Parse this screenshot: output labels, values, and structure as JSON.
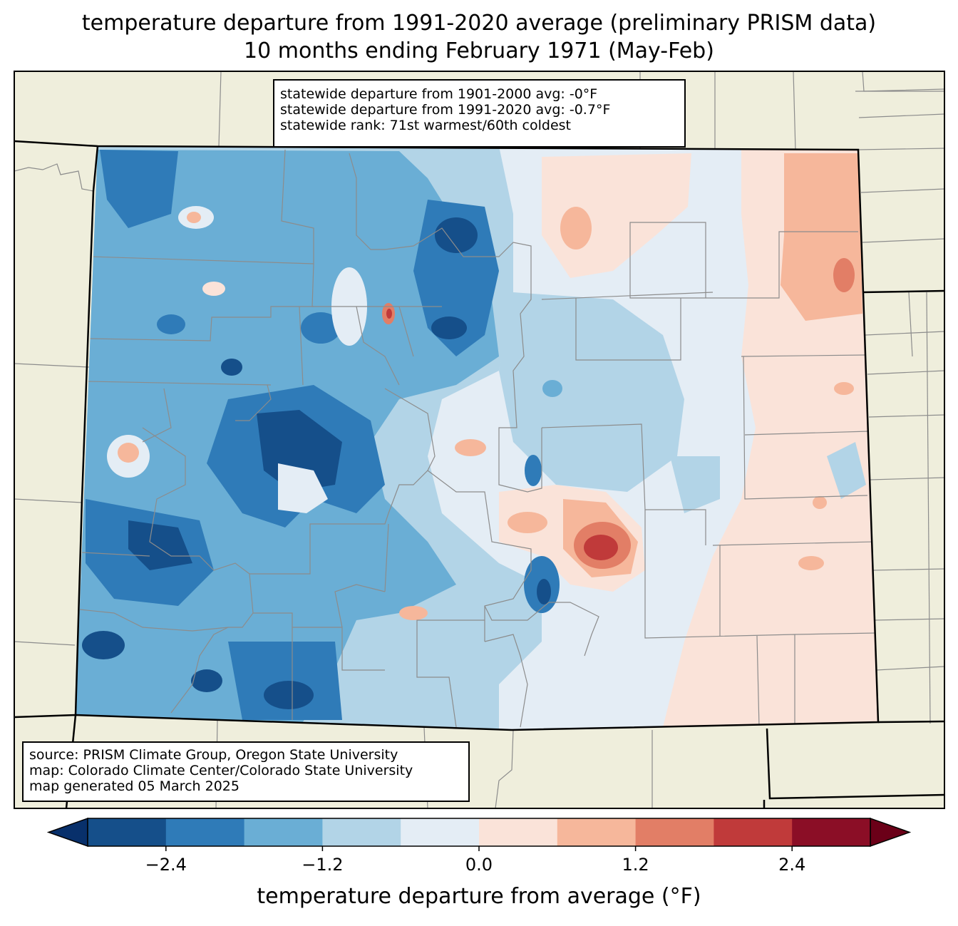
{
  "title_line1": "temperature departure from 1991-2020 average (preliminary PRISM data)",
  "title_line2": "10 months ending February 1971 (May-Feb)",
  "stats": {
    "line1": "statewide departure from 1901-2000 avg: -0°F",
    "line2": "statewide departure from 1991-2020 avg: -0.7°F",
    "line3": "statewide rank: 71st warmest/60th coldest"
  },
  "source": {
    "line1": "source: PRISM Climate Group, Oregon State University",
    "line2": "map: Colorado Climate Center/Colorado State University",
    "line3": "map generated 05 March 2025"
  },
  "colorbar": {
    "label": "temperature departure from average (°F)",
    "ticks": [
      "−2.4",
      "−1.2",
      "0.0",
      "1.2",
      "2.4"
    ],
    "tick_values": [
      -2.4,
      -1.2,
      0.0,
      1.2,
      2.4
    ],
    "bin_edges": [
      -3.0,
      -2.4,
      -1.8,
      -1.2,
      -0.6,
      0.0,
      0.6,
      1.2,
      1.8,
      2.4,
      3.0
    ],
    "colors": [
      "#08306b",
      "#154f8a",
      "#2f7bb8",
      "#6aaed5",
      "#b2d4e7",
      "#e4edf5",
      "#fae3d9",
      "#f6b79b",
      "#e27e66",
      "#c03a3a",
      "#8b0e26",
      "#6b0018"
    ]
  },
  "map_colors": {
    "land": "#efeedc",
    "state_border": "#000000",
    "county_line": "#8c8c8c"
  }
}
